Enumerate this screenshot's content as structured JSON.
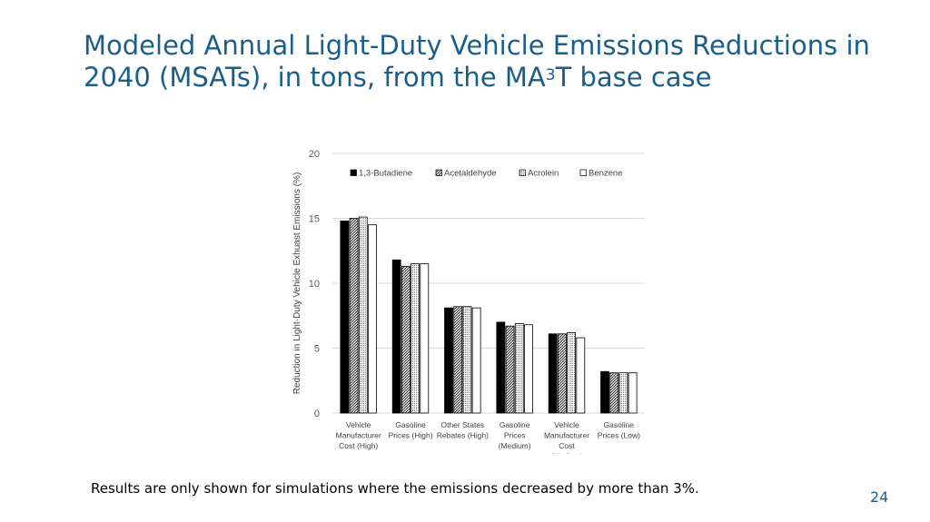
{
  "slide": {
    "title_part1": "Modeled Annual Light-Duty Vehicle Emissions Reductions in 2040 (MSATs), in tons, from the MA",
    "title_sup": "3",
    "title_part2": "T base case",
    "footnote": "Results are only shown for simulations where the emissions decreased by more than 3%.",
    "page_number": "24"
  },
  "chart_data": {
    "type": "bar",
    "title": "",
    "xlabel": "",
    "ylabel": "Reduction in Light-Duty Vehicle Exhuast Emissions (%)",
    "ylim": [
      0,
      20
    ],
    "yticks": [
      0,
      5,
      10,
      15,
      20
    ],
    "grid": true,
    "legend_position": "top",
    "categories": [
      [
        "Vehicle",
        "Manufacturer",
        "Cost (High)"
      ],
      [
        "Gasoline",
        "Prices (High)"
      ],
      [
        "Other States",
        "Rebates (High)"
      ],
      [
        "Gasoline",
        "Prices",
        "(Medium)"
      ],
      [
        "Vehicle",
        "Manufacturer",
        "Cost",
        "(Medium)"
      ],
      [
        "Gasoline",
        "Prices (Low)"
      ]
    ],
    "series": [
      {
        "name": "1,3-Butadiene",
        "pattern": "solid",
        "color": "#000000",
        "values": [
          14.8,
          11.8,
          8.1,
          7.0,
          6.1,
          3.2
        ]
      },
      {
        "name": "Acetaldehyde",
        "pattern": "hatch",
        "color": "#555555",
        "values": [
          15.0,
          11.3,
          8.2,
          6.7,
          6.1,
          3.1
        ]
      },
      {
        "name": "Acrolein",
        "pattern": "dots",
        "color": "#888888",
        "values": [
          15.1,
          11.5,
          8.2,
          6.9,
          6.2,
          3.1
        ]
      },
      {
        "name": "Benzene",
        "pattern": "white",
        "color": "#ffffff",
        "values": [
          14.5,
          11.5,
          8.1,
          6.8,
          5.8,
          3.1
        ]
      }
    ]
  }
}
